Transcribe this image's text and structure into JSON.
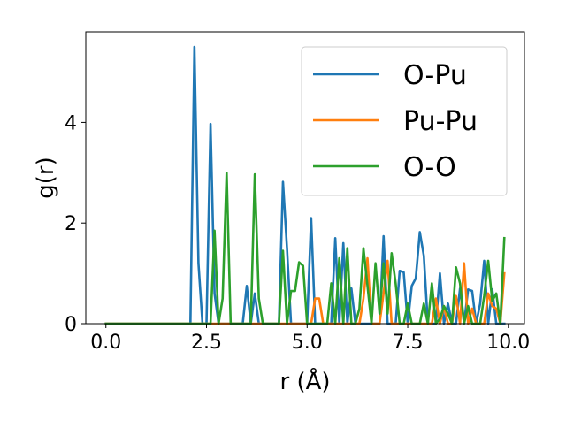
{
  "chart_data": {
    "type": "line",
    "title": "",
    "xlabel": "r (Å)",
    "ylabel": "g(r)",
    "xlim": [
      -0.5,
      10.4
    ],
    "ylim": [
      0,
      5.8
    ],
    "xticks": [
      0.0,
      2.5,
      5.0,
      7.5,
      10.0
    ],
    "xtick_labels": [
      "0.0",
      "2.5",
      "5.0",
      "7.5",
      "10.0"
    ],
    "yticks": [
      0,
      2,
      4
    ],
    "ytick_labels": [
      "0",
      "2",
      "4"
    ],
    "grid": false,
    "legend_position": "top-right",
    "series": [
      {
        "name": "O-Pu",
        "color": "#1f77b4",
        "x": [
          0.0,
          2.1,
          2.2,
          2.3,
          2.4,
          2.5,
          2.6,
          2.7,
          2.8,
          3.4,
          3.5,
          3.6,
          3.7,
          3.8,
          4.3,
          4.4,
          4.5,
          4.6,
          5.0,
          5.1,
          5.2,
          5.6,
          5.7,
          5.8,
          5.9,
          6.0,
          6.1,
          6.2,
          6.8,
          6.9,
          7.0,
          7.2,
          7.3,
          7.4,
          7.5,
          7.6,
          7.7,
          7.8,
          7.9,
          8.0,
          8.2,
          8.3,
          8.4,
          8.5,
          8.6,
          8.7,
          8.8,
          8.9,
          9.0,
          9.1,
          9.2,
          9.3,
          9.4,
          9.5,
          9.6,
          9.7,
          9.8,
          9.9
        ],
        "y": [
          0.0,
          0.0,
          5.5,
          1.2,
          0.0,
          0.0,
          3.97,
          0.6,
          0.0,
          0.0,
          0.75,
          0.0,
          0.6,
          0.0,
          0.0,
          2.82,
          1.5,
          0.0,
          0.0,
          2.1,
          0.0,
          0.0,
          1.7,
          0.0,
          1.6,
          0.0,
          0.7,
          0.0,
          0.0,
          1.74,
          0.0,
          0.0,
          1.05,
          1.02,
          0.0,
          0.75,
          0.9,
          1.82,
          1.35,
          0.0,
          0.0,
          1.0,
          0.0,
          0.4,
          0.0,
          0.0,
          0.7,
          0.0,
          0.68,
          0.65,
          0.0,
          0.4,
          1.25,
          0.0,
          0.68,
          0.0,
          0.0,
          0.0
        ]
      },
      {
        "name": "Pu-Pu",
        "color": "#ff7f0e",
        "x": [
          0.0,
          5.1,
          5.2,
          5.3,
          5.4,
          5.5,
          6.3,
          6.4,
          6.5,
          6.6,
          6.7,
          6.8,
          6.9,
          7.0,
          7.1,
          7.2,
          7.3,
          8.1,
          8.2,
          8.3,
          8.4,
          8.5,
          8.6,
          8.7,
          8.8,
          8.9,
          9.0,
          9.1,
          9.2,
          9.3,
          9.4,
          9.5,
          9.6,
          9.7,
          9.8,
          9.9
        ],
        "y": [
          0.0,
          0.0,
          0.5,
          0.5,
          0.0,
          0.0,
          0.0,
          0.5,
          1.3,
          0.0,
          0.0,
          0.0,
          0.6,
          1.25,
          0.0,
          0.0,
          0.0,
          0.0,
          0.5,
          0.0,
          0.35,
          0.0,
          0.0,
          0.55,
          0.0,
          1.2,
          0.0,
          0.3,
          0.0,
          0.0,
          0.0,
          0.6,
          0.35,
          0.3,
          0.0,
          1.0
        ]
      },
      {
        "name": "O-O",
        "color": "#2ca02c",
        "x": [
          0.0,
          2.6,
          2.7,
          2.8,
          2.9,
          3.0,
          3.1,
          3.2,
          3.6,
          3.7,
          3.8,
          3.9,
          4.3,
          4.4,
          4.5,
          4.6,
          4.7,
          4.8,
          4.9,
          5.0,
          5.5,
          5.6,
          5.7,
          5.8,
          5.9,
          6.0,
          6.1,
          6.2,
          6.3,
          6.4,
          6.6,
          6.7,
          6.8,
          6.9,
          7.0,
          7.1,
          7.2,
          7.3,
          7.4,
          7.5,
          7.6,
          7.7,
          7.8,
          7.9,
          8.0,
          8.1,
          8.2,
          8.3,
          8.4,
          8.5,
          8.6,
          8.7,
          8.8,
          8.9,
          9.0,
          9.1,
          9.2,
          9.3,
          9.4,
          9.5,
          9.6,
          9.7,
          9.8,
          9.9
        ],
        "y": [
          0.0,
          0.0,
          1.85,
          0.0,
          0.5,
          3.0,
          0.0,
          0.0,
          0.0,
          2.97,
          0.5,
          0.0,
          0.0,
          1.45,
          0.0,
          0.65,
          0.65,
          1.22,
          1.15,
          0.0,
          0.0,
          0.8,
          0.0,
          1.3,
          0.0,
          1.5,
          0.0,
          0.0,
          0.3,
          1.5,
          0.0,
          1.2,
          0.2,
          1.2,
          0.2,
          1.4,
          0.8,
          0.0,
          0.0,
          0.4,
          0.0,
          0.0,
          0.0,
          0.4,
          0.0,
          0.8,
          0.0,
          0.1,
          0.35,
          0.2,
          0.0,
          1.12,
          0.8,
          0.0,
          0.35,
          0.0,
          0.0,
          0.0,
          0.55,
          1.25,
          0.45,
          0.6,
          0.0,
          1.7
        ]
      }
    ]
  }
}
